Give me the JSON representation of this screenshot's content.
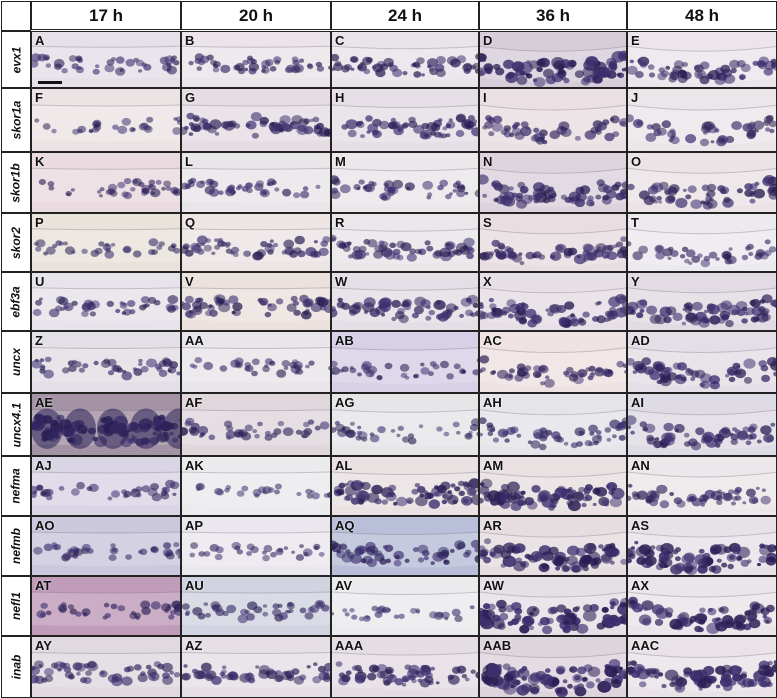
{
  "columns": [
    "17 h",
    "20 h",
    "24 h",
    "36 h",
    "48 h"
  ],
  "rows": [
    {
      "gene": "evx1",
      "panels": [
        "A",
        "B",
        "C",
        "D",
        "E"
      ],
      "bg": [
        "#e6e0e8",
        "#ebe4ea",
        "#e9e3ea",
        "#d7cdd9",
        "#ece6ec"
      ],
      "signal": [
        0.35,
        0.4,
        0.5,
        0.9,
        0.6
      ]
    },
    {
      "gene": "skor1a",
      "panels": [
        "F",
        "G",
        "H",
        "I",
        "J"
      ],
      "bg": [
        "#ece4e4",
        "#e6dde4",
        "#e6dfe7",
        "#eadfe2",
        "#ebe6ea"
      ],
      "signal": [
        0.2,
        0.6,
        0.6,
        0.5,
        0.45
      ]
    },
    {
      "gene": "skor1b",
      "panels": [
        "K",
        "L",
        "M",
        "N",
        "O"
      ],
      "bg": [
        "#e9dbe0",
        "#e9e6e9",
        "#ebe7eb",
        "#ddd3dd",
        "#ece3e6"
      ],
      "signal": [
        0.35,
        0.35,
        0.4,
        0.7,
        0.6
      ]
    },
    {
      "gene": "skor2",
      "panels": [
        "P",
        "Q",
        "R",
        "S",
        "T"
      ],
      "bg": [
        "#eae3dc",
        "#ede4e4",
        "#eae6ea",
        "#e8dde1",
        "#eceaee"
      ],
      "signal": [
        0.25,
        0.5,
        0.55,
        0.6,
        0.35
      ]
    },
    {
      "gene": "ebf3a",
      "panels": [
        "U",
        "V",
        "W",
        "X",
        "Y"
      ],
      "bg": [
        "#e6e3ea",
        "#ebe2de",
        "#e4dee6",
        "#e6dfe6",
        "#e2dbe3"
      ],
      "signal": [
        0.35,
        0.55,
        0.6,
        0.7,
        0.7
      ]
    },
    {
      "gene": "uncx",
      "panels": [
        "Z",
        "AA",
        "AB",
        "AC",
        "AD"
      ],
      "bg": [
        "#e2e0e6",
        "#e8e6ea",
        "#d7d0e6",
        "#eee2e2",
        "#e4dfe6"
      ],
      "signal": [
        0.4,
        0.25,
        0.3,
        0.45,
        0.6
      ]
    },
    {
      "gene": "uncx4.1",
      "panels": [
        "AE",
        "AF",
        "AG",
        "AH",
        "AI"
      ],
      "bg": [
        "#a493a4",
        "#e0d7dd",
        "#e6e6e9",
        "#e4e4e9",
        "#dedbe4"
      ],
      "signal": [
        0.95,
        0.35,
        0.3,
        0.5,
        0.6
      ]
    },
    {
      "gene": "nefma",
      "panels": [
        "AJ",
        "AK",
        "AL",
        "AM",
        "AN"
      ],
      "bg": [
        "#d9d5e4",
        "#ebebee",
        "#e9e1e2",
        "#e8e0e1",
        "#ebe7ea"
      ],
      "signal": [
        0.3,
        0.15,
        0.75,
        0.85,
        0.5
      ]
    },
    {
      "gene": "nefmb",
      "panels": [
        "AO",
        "AP",
        "AQ",
        "AR",
        "AS"
      ],
      "bg": [
        "#cbc7dc",
        "#ebe7ee",
        "#b9bfd8",
        "#e5dde0",
        "#e7e2e8"
      ],
      "signal": [
        0.3,
        0.2,
        0.6,
        0.85,
        0.85
      ]
    },
    {
      "gene": "nefl1",
      "panels": [
        "AT",
        "AU",
        "AV",
        "AW",
        "AX"
      ],
      "bg": [
        "#c09cba",
        "#d1d4e0",
        "#ebebed",
        "#e4e0e6",
        "#e9e5ea"
      ],
      "signal": [
        0.3,
        0.35,
        0.2,
        0.95,
        0.8
      ]
    },
    {
      "gene": "inab",
      "panels": [
        "AY",
        "AZ",
        "AAA",
        "AAB",
        "AAC"
      ],
      "bg": [
        "#e0d9e0",
        "#e6e0e6",
        "#e4dde4",
        "#ded5dc",
        "#e9e3e8"
      ],
      "signal": [
        0.5,
        0.5,
        0.55,
        0.95,
        0.85
      ]
    }
  ],
  "colors": {
    "stain": "#3c2f6e",
    "stain_dark": "#2a1f55",
    "grid": "#222222"
  }
}
